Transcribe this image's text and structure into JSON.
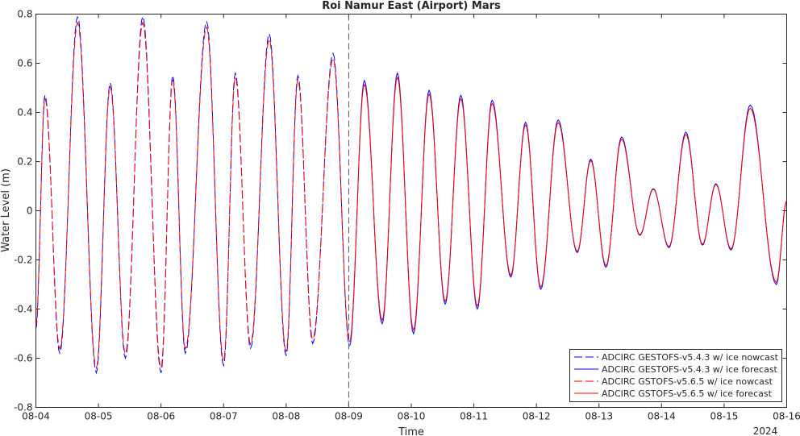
{
  "chart_data": {
    "type": "line",
    "title": "Roi Namur East (Airport) Mars",
    "xlabel": "Time",
    "ylabel": "Water Level (m)",
    "year_label": "2024",
    "xlim": [
      "2024-08-04",
      "2024-08-16"
    ],
    "ylim": [
      -0.8,
      0.8
    ],
    "x_ticks": [
      "08-04",
      "08-05",
      "08-06",
      "08-07",
      "08-08",
      "08-09",
      "08-10",
      "08-11",
      "08-12",
      "08-13",
      "08-14",
      "08-15",
      "08-16"
    ],
    "y_ticks": [
      -0.8,
      -0.6,
      -0.4,
      -0.2,
      0,
      0.2,
      0.4,
      0.6,
      0.8
    ],
    "y_tick_labels": [
      "-0.8",
      "-0.6",
      "-0.4",
      "-0.2",
      "0",
      "0.2",
      "0.4",
      "0.6",
      "0.8"
    ],
    "nowcast_forecast_divider": "2024-08-09",
    "grid": false,
    "legend_position": "bottom-right",
    "series_extrema": {
      "columns": [
        "datetime",
        "water_level_m"
      ],
      "points": [
        [
          "2024-08-04 00:00",
          -0.48
        ],
        [
          "2024-08-04 03:30",
          0.47
        ],
        [
          "2024-08-04 09:10",
          -0.58
        ],
        [
          "2024-08-04 16:00",
          0.79
        ],
        [
          "2024-08-04 23:10",
          -0.66
        ],
        [
          "2024-08-05 04:30",
          0.52
        ],
        [
          "2024-08-05 10:20",
          -0.6
        ],
        [
          "2024-08-05 17:00",
          0.79
        ],
        [
          "2024-08-06 00:00",
          -0.66
        ],
        [
          "2024-08-06 04:30",
          0.55
        ],
        [
          "2024-08-06 09:20",
          -0.58
        ],
        [
          "2024-08-06 17:30",
          0.77
        ],
        [
          "2024-08-07 00:00",
          -0.63
        ],
        [
          "2024-08-07 04:30",
          0.56
        ],
        [
          "2024-08-07 10:20",
          -0.56
        ],
        [
          "2024-08-07 17:30",
          0.72
        ],
        [
          "2024-08-08 00:00",
          -0.59
        ],
        [
          "2024-08-08 04:30",
          0.55
        ],
        [
          "2024-08-08 10:10",
          -0.54
        ],
        [
          "2024-08-08 18:00",
          0.64
        ],
        [
          "2024-08-09 00:20",
          -0.55
        ],
        [
          "2024-08-09 06:00",
          0.53
        ],
        [
          "2024-08-09 12:50",
          -0.46
        ],
        [
          "2024-08-09 18:40",
          0.56
        ],
        [
          "2024-08-10 00:50",
          -0.5
        ],
        [
          "2024-08-10 06:50",
          0.49
        ],
        [
          "2024-08-10 13:00",
          -0.38
        ],
        [
          "2024-08-10 19:00",
          0.47
        ],
        [
          "2024-08-11 01:20",
          -0.4
        ],
        [
          "2024-08-11 07:00",
          0.45
        ],
        [
          "2024-08-11 14:10",
          -0.27
        ],
        [
          "2024-08-11 19:50",
          0.36
        ],
        [
          "2024-08-12 01:40",
          -0.32
        ],
        [
          "2024-08-12 08:20",
          0.37
        ],
        [
          "2024-08-12 15:40",
          -0.17
        ],
        [
          "2024-08-12 20:50",
          0.21
        ],
        [
          "2024-08-13 02:40",
          -0.23
        ],
        [
          "2024-08-13 08:40",
          0.3
        ],
        [
          "2024-08-13 15:40",
          -0.1
        ],
        [
          "2024-08-13 20:50",
          0.09
        ],
        [
          "2024-08-14 02:50",
          -0.15
        ],
        [
          "2024-08-14 09:20",
          0.32
        ],
        [
          "2024-08-14 15:40",
          -0.14
        ],
        [
          "2024-08-14 20:50",
          0.11
        ],
        [
          "2024-08-15 02:40",
          -0.16
        ],
        [
          "2024-08-15 10:00",
          0.43
        ],
        [
          "2024-08-15 20:00",
          -0.3
        ],
        [
          "2024-08-16 00:00",
          0.04
        ]
      ]
    },
    "series": [
      {
        "name": "ADCIRC GESTOFS-v5.4.3 w/ ice nowcast",
        "color": "#0000ff",
        "style": "dashed",
        "span": [
          "2024-08-04",
          "2024-08-09"
        ]
      },
      {
        "name": "ADCIRC GESTOFS-v5.4.3 w/ ice forecast",
        "color": "#0000ff",
        "style": "solid",
        "span": [
          "2024-08-09",
          "2024-08-16"
        ]
      },
      {
        "name": "ADCIRC GSTOFS-v5.6.5 w/ ice nowcast",
        "color": "#ff0000",
        "style": "dashed",
        "span": [
          "2024-08-04",
          "2024-08-09"
        ]
      },
      {
        "name": "ADCIRC GSTOFS-v5.6.5 w/ ice forecast",
        "color": "#ff0000",
        "style": "solid",
        "span": [
          "2024-08-09",
          "2024-08-16"
        ]
      }
    ]
  }
}
